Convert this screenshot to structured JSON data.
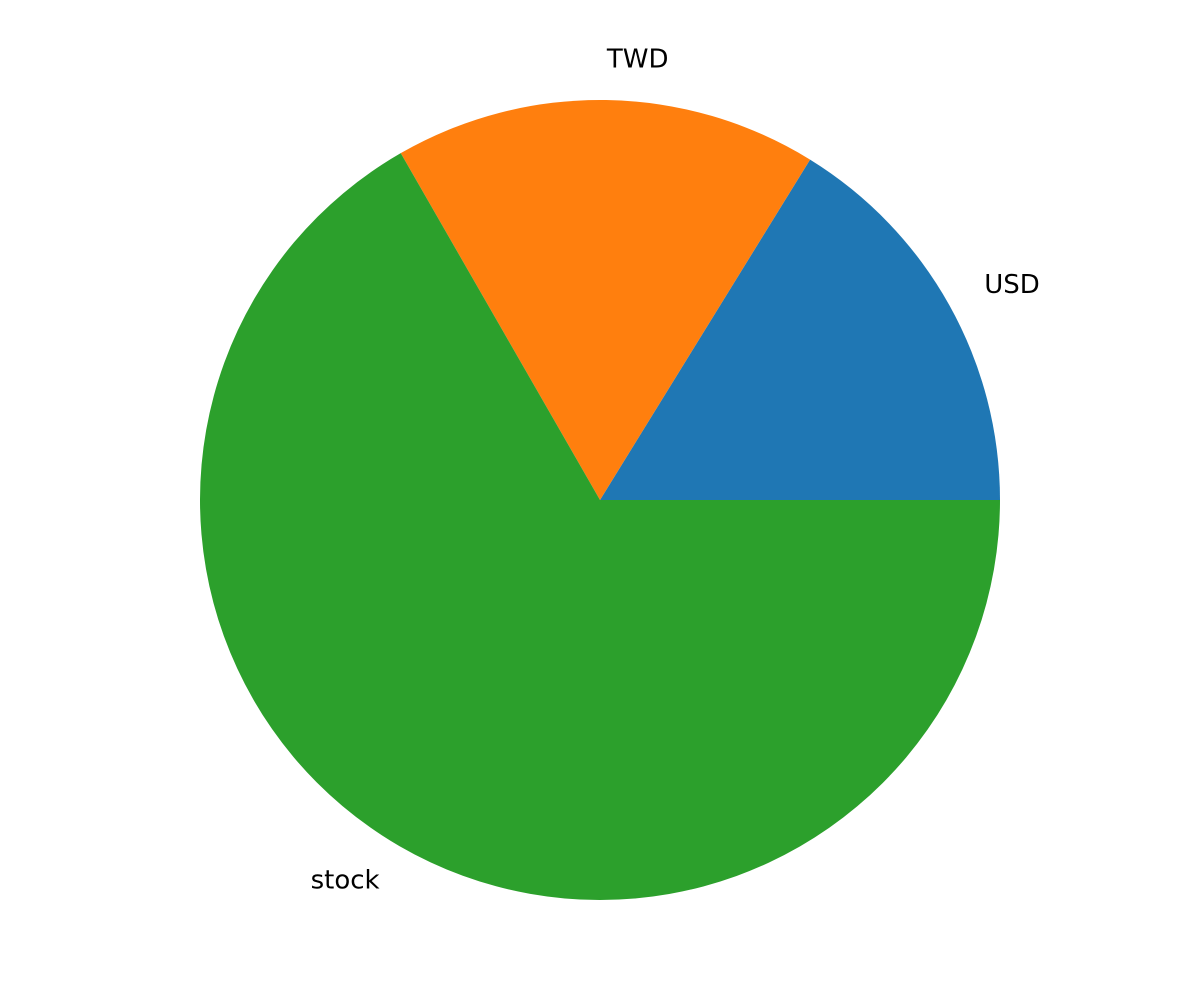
{
  "chart_data": {
    "type": "pie",
    "title": "",
    "start_angle_deg": 0,
    "direction": "counterclockwise",
    "legend": "none",
    "slices": [
      {
        "label": "USD",
        "value": 16.2,
        "color": "#1f77b4"
      },
      {
        "label": "TWD",
        "value": 17.1,
        "color": "#ff7f0e"
      },
      {
        "label": "stock",
        "value": 66.7,
        "color": "#2ca02c"
      }
    ]
  }
}
